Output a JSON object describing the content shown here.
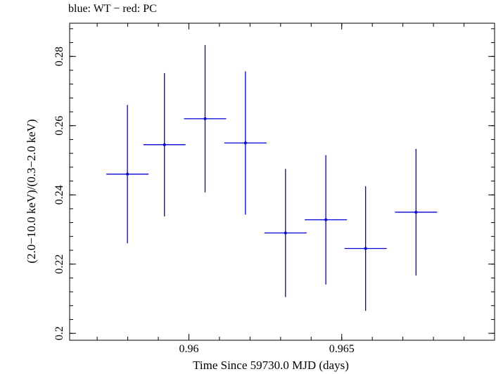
{
  "chart_data": {
    "type": "scatter",
    "title": "blue: WT − red: PC",
    "xlabel": "Time Since 59730.0 MJD (days)",
    "ylabel": "(2.0−10.0 keV)/(0.3−2.0 keV)",
    "xlim": [
      0.9561,
      0.97
    ],
    "ylim": [
      0.198,
      0.2896
    ],
    "xticks": [
      {
        "value": 0.96,
        "label": "0.96"
      },
      {
        "value": 0.965,
        "label": "0.965"
      }
    ],
    "yticks": [
      {
        "value": 0.2,
        "label": "0.2"
      },
      {
        "value": 0.22,
        "label": "0.22"
      },
      {
        "value": 0.24,
        "label": "0.24"
      },
      {
        "value": 0.26,
        "label": "0.26"
      },
      {
        "value": 0.28,
        "label": "0.28"
      }
    ],
    "grid": false,
    "series": [
      {
        "color": "#0000dd",
        "points": [
          {
            "x": 0.95799,
            "xerr": 0.00069,
            "y": 0.246,
            "yerr": 0.02
          },
          {
            "x": 0.9592,
            "xerr": 0.00069,
            "y": 0.2545,
            "yerr": 0.0207
          },
          {
            "x": 0.96053,
            "xerr": 0.00069,
            "y": 0.262,
            "yerr": 0.0213
          },
          {
            "x": 0.96185,
            "xerr": 0.00069,
            "y": 0.255,
            "yerr": 0.0207
          },
          {
            "x": 0.96316,
            "xerr": 0.00069,
            "y": 0.229,
            "yerr": 0.0185
          },
          {
            "x": 0.96448,
            "xerr": 0.00069,
            "y": 0.2328,
            "yerr": 0.0187
          },
          {
            "x": 0.96578,
            "xerr": 0.00069,
            "y": 0.2245,
            "yerr": 0.018
          },
          {
            "x": 0.96743,
            "xerr": 0.00069,
            "y": 0.235,
            "yerr": 0.0183
          }
        ]
      }
    ]
  }
}
